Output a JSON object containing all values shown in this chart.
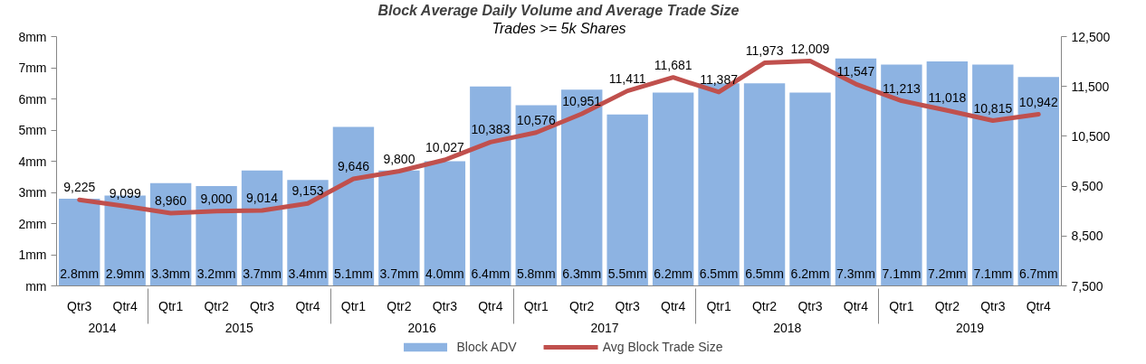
{
  "chart_data": {
    "type": "bar",
    "title": "Block Average Daily Volume and Average Trade Size",
    "subtitle": "Trades >= 5k Shares",
    "categories": [
      "Qtr3",
      "Qtr4",
      "Qtr1",
      "Qtr2",
      "Qtr3",
      "Qtr4",
      "Qtr1",
      "Qtr2",
      "Qtr3",
      "Qtr4",
      "Qtr1",
      "Qtr2",
      "Qtr3",
      "Qtr4",
      "Qtr1",
      "Qtr2",
      "Qtr3",
      "Qtr4",
      "Qtr1",
      "Qtr2",
      "Qtr3",
      "Qtr4"
    ],
    "annotations": [
      "2014",
      "2015",
      "2016",
      "2017",
      "2018",
      "2019"
    ],
    "series": [
      {
        "name": "Block ADV",
        "color": "#8db3e2",
        "values": [
          2.8,
          2.9,
          3.3,
          3.2,
          3.7,
          3.4,
          5.1,
          3.7,
          4.0,
          6.4,
          5.8,
          6.3,
          5.5,
          6.2,
          6.5,
          6.5,
          6.2,
          7.3,
          7.1,
          7.2,
          7.1,
          6.7
        ],
        "value_labels": [
          "2.8mm",
          "2.9mm",
          "3.3mm",
          "3.2mm",
          "3.7mm",
          "3.4mm",
          "5.1mm",
          "3.7mm",
          "4.0mm",
          "6.4mm",
          "5.8mm",
          "6.3mm",
          "5.5mm",
          "6.2mm",
          "6.5mm",
          "6.5mm",
          "6.2mm",
          "7.3mm",
          "7.1mm",
          "7.2mm",
          "7.1mm",
          "6.7mm"
        ]
      },
      {
        "name": "Avg Block Trade Size",
        "type": "line",
        "axis": "y2",
        "color": "#c0504d",
        "values": [
          9225,
          9099,
          8960,
          9000,
          9014,
          9153,
          9646,
          9800,
          10027,
          10383,
          10576,
          10951,
          11411,
          11681,
          11387,
          11973,
          12009,
          11547,
          11213,
          11018,
          10815,
          10942
        ],
        "value_labels": [
          "9,225",
          "9,099",
          "8,960",
          "9,000",
          "9,014",
          "9,153",
          "9,646",
          "9,800",
          "10,027",
          "10,383",
          "10,576",
          "10,951",
          "11,411",
          "11,681",
          "11,387",
          "11,973",
          "12,009",
          "11,547",
          "11,213",
          "11,018",
          "10,815",
          "10,942"
        ]
      }
    ],
    "ylim": [
      0,
      8
    ],
    "yticks": [
      {
        "value": 0,
        "label": "mm"
      },
      {
        "value": 1,
        "label": "1mm"
      },
      {
        "value": 2,
        "label": "2mm"
      },
      {
        "value": 3,
        "label": "3mm"
      },
      {
        "value": 4,
        "label": "4mm"
      },
      {
        "value": 5,
        "label": "5mm"
      },
      {
        "value": 6,
        "label": "6mm"
      },
      {
        "value": 7,
        "label": "7mm"
      },
      {
        "value": 8,
        "label": "8mm"
      }
    ],
    "y2lim": [
      7500,
      12500
    ],
    "y2ticks": [
      {
        "value": 7500,
        "label": "7,500"
      },
      {
        "value": 8500,
        "label": "8,500"
      },
      {
        "value": 9500,
        "label": "9,500"
      },
      {
        "value": 10500,
        "label": "10,500"
      },
      {
        "value": 11500,
        "label": "11,500"
      },
      {
        "value": 12500,
        "label": "12,500"
      }
    ],
    "grid": false,
    "legend": "bottom"
  }
}
